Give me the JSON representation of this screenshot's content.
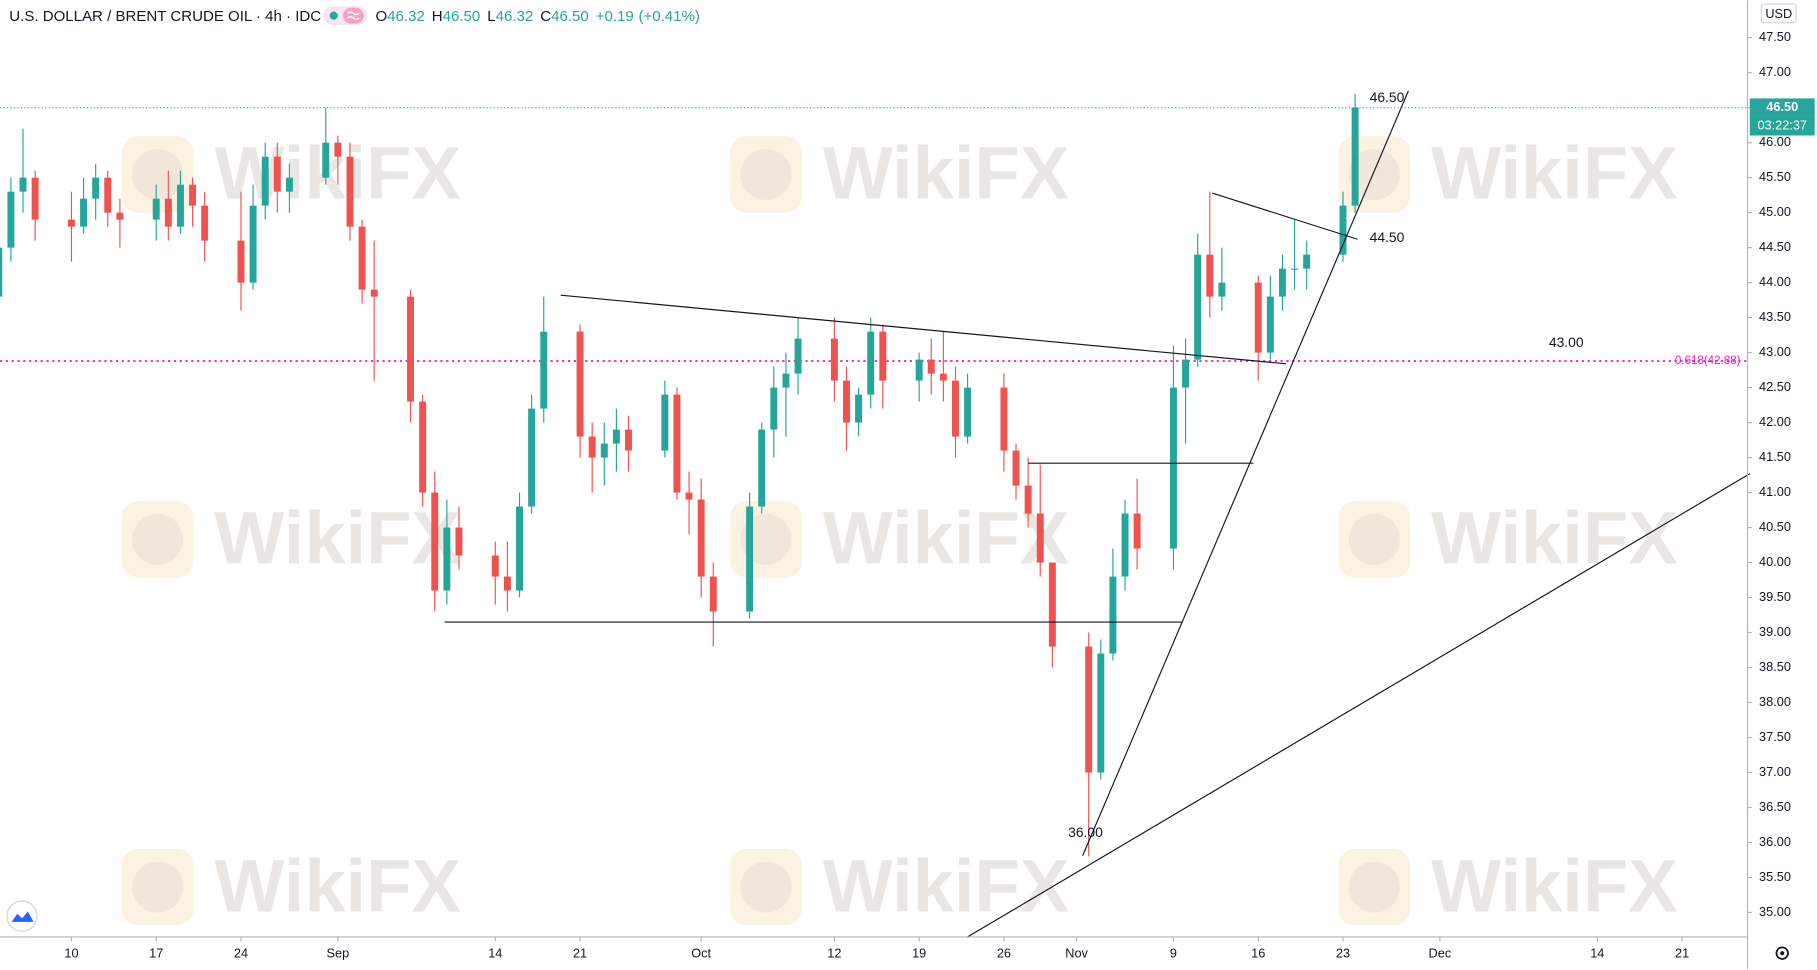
{
  "chart_data": {
    "type": "candlestick",
    "title": "U.S. DOLLAR / BRENT CRUDE OIL · 4h · IDC",
    "ohlc": [
      {
        "label": "O",
        "value": 46.32
      },
      {
        "label": "H",
        "value": 46.5
      },
      {
        "label": "L",
        "value": 46.32
      },
      {
        "label": "C",
        "value": 46.5
      }
    ],
    "ohlc_value_labels": [
      "46.32",
      "46.50",
      "46.32",
      "46.50"
    ],
    "change": "+0.19",
    "change_pct": "(+0.41%)",
    "currency": "USD",
    "countdown": "03:22:37",
    "watermark": "WikiFX",
    "up_color": "#26a69a",
    "down_color": "#ef5350",
    "grid": false,
    "x": [
      3,
      4,
      5,
      6,
      9,
      10,
      11,
      12,
      13,
      16,
      17,
      18,
      19,
      20,
      23,
      24,
      25,
      26,
      27,
      30,
      31,
      32,
      33,
      34,
      37,
      38,
      39,
      40,
      41,
      44,
      45,
      46,
      47,
      48,
      51,
      52,
      53,
      54,
      55,
      58,
      59,
      60,
      61,
      62,
      65,
      66,
      67,
      68,
      69,
      72,
      73,
      74,
      75,
      76,
      79,
      80,
      81,
      82,
      83,
      86,
      87,
      88,
      89,
      90,
      93,
      94,
      95,
      96,
      97,
      100,
      101,
      102,
      103,
      104,
      107,
      108,
      109,
      110,
      111,
      114,
      115
    ],
    "open": [
      43.8,
      44.5,
      45.3,
      45.5,
      44.9,
      44.8,
      45.2,
      45.5,
      45.0,
      44.9,
      45.2,
      44.8,
      45.4,
      45.1,
      44.6,
      44.0,
      45.1,
      45.8,
      45.3,
      45.5,
      46.0,
      45.8,
      44.8,
      43.9,
      43.8,
      42.3,
      41.0,
      39.6,
      40.5,
      40.1,
      39.8,
      39.6,
      40.8,
      42.2,
      43.3,
      41.8,
      41.5,
      41.7,
      41.9,
      41.6,
      42.4,
      41.0,
      40.9,
      39.8,
      39.3,
      40.8,
      41.9,
      42.5,
      42.7,
      43.2,
      42.6,
      42.0,
      42.4,
      43.3,
      42.6,
      42.9,
      42.7,
      42.6,
      41.8,
      42.5,
      41.6,
      41.1,
      40.7,
      40.0,
      38.8,
      37.0,
      38.7,
      39.8,
      40.7,
      40.2,
      42.5,
      42.9,
      44.4,
      43.8,
      44.0,
      43.0,
      43.8,
      44.2,
      44.2,
      44.4,
      45.1
    ],
    "high": [
      44.6,
      45.5,
      46.2,
      45.6,
      45.3,
      45.5,
      45.7,
      45.6,
      45.2,
      45.4,
      45.6,
      45.6,
      45.5,
      45.3,
      45.3,
      45.4,
      46.0,
      46.0,
      45.7,
      46.5,
      46.1,
      46.0,
      44.9,
      44.6,
      43.9,
      42.4,
      41.3,
      40.9,
      40.8,
      40.3,
      40.3,
      41.0,
      42.4,
      43.8,
      43.4,
      42.0,
      42.0,
      42.2,
      42.1,
      42.6,
      42.5,
      41.3,
      41.2,
      40.0,
      41.0,
      42.0,
      42.8,
      43.0,
      43.5,
      43.5,
      42.8,
      42.5,
      43.5,
      43.4,
      43.0,
      43.2,
      43.3,
      42.8,
      42.7,
      42.7,
      41.7,
      41.5,
      41.4,
      40.0,
      39.0,
      38.9,
      40.2,
      40.9,
      41.2,
      43.1,
      43.2,
      44.7,
      45.3,
      44.5,
      44.1,
      44.1,
      44.4,
      44.9,
      44.6,
      45.3,
      46.7
    ],
    "low": [
      43.2,
      44.3,
      45.0,
      44.6,
      44.3,
      44.7,
      44.9,
      44.8,
      44.5,
      44.6,
      44.6,
      44.7,
      44.8,
      44.3,
      43.6,
      43.9,
      44.9,
      45.0,
      45.0,
      45.4,
      45.4,
      44.6,
      43.7,
      42.6,
      42.0,
      40.8,
      39.3,
      39.4,
      39.9,
      39.4,
      39.3,
      39.5,
      40.7,
      42.0,
      41.5,
      41.0,
      41.1,
      41.3,
      41.3,
      41.5,
      40.9,
      40.4,
      39.5,
      38.8,
      39.2,
      40.7,
      41.5,
      41.8,
      42.4,
      42.3,
      41.6,
      41.8,
      42.2,
      42.2,
      42.3,
      42.4,
      42.3,
      41.5,
      41.7,
      41.3,
      40.9,
      40.5,
      39.8,
      38.5,
      35.8,
      36.9,
      38.6,
      39.6,
      39.9,
      39.9,
      41.7,
      42.8,
      43.5,
      43.6,
      42.6,
      42.9,
      43.6,
      43.9,
      43.9,
      44.3,
      45.0
    ],
    "close": [
      44.5,
      45.3,
      45.5,
      44.9,
      44.8,
      45.2,
      45.5,
      45.0,
      44.9,
      45.2,
      44.8,
      45.4,
      45.1,
      44.6,
      44.0,
      45.1,
      45.8,
      45.3,
      45.5,
      46.0,
      45.8,
      44.8,
      43.9,
      43.8,
      42.3,
      41.0,
      39.6,
      40.5,
      40.1,
      39.8,
      39.6,
      40.8,
      42.2,
      43.3,
      41.8,
      41.5,
      41.7,
      41.9,
      41.6,
      42.4,
      41.0,
      40.9,
      39.8,
      39.3,
      40.8,
      41.9,
      42.5,
      42.7,
      43.2,
      42.6,
      42.0,
      42.4,
      43.3,
      42.6,
      42.9,
      42.7,
      42.6,
      41.8,
      42.5,
      41.6,
      41.1,
      40.7,
      40.0,
      38.8,
      37.0,
      38.7,
      39.8,
      40.7,
      40.2,
      42.5,
      42.9,
      44.4,
      43.8,
      44.0,
      43.0,
      43.8,
      44.2,
      44.2,
      44.4,
      45.1,
      46.5
    ],
    "xlim": [
      3.1,
      147.4
    ],
    "ylim": [
      34.65,
      48.03
    ],
    "xticks": [
      {
        "value": 9,
        "label": "10"
      },
      {
        "value": 16,
        "label": "17"
      },
      {
        "value": 23,
        "label": "24"
      },
      {
        "value": 31,
        "label": "Sep"
      },
      {
        "value": 44,
        "label": "14"
      },
      {
        "value": 51,
        "label": "21"
      },
      {
        "value": 61,
        "label": "Oct"
      },
      {
        "value": 72,
        "label": "12"
      },
      {
        "value": 79,
        "label": "19"
      },
      {
        "value": 86,
        "label": "26"
      },
      {
        "value": 92,
        "label": "Nov"
      },
      {
        "value": 100,
        "label": "9"
      },
      {
        "value": 107,
        "label": "16"
      },
      {
        "value": 114,
        "label": "23"
      },
      {
        "value": 122,
        "label": "Dec"
      },
      {
        "value": 135,
        "label": "14"
      },
      {
        "value": 142,
        "label": "21"
      }
    ],
    "yticks": [
      {
        "value": 35,
        "label": "35.00"
      },
      {
        "value": 35.5,
        "label": "35.50"
      },
      {
        "value": 36,
        "label": "36.00"
      },
      {
        "value": 36.5,
        "label": "36.50"
      },
      {
        "value": 37,
        "label": "37.00"
      },
      {
        "value": 37.5,
        "label": "37.50"
      },
      {
        "value": 38,
        "label": "38.00"
      },
      {
        "value": 38.5,
        "label": "38.50"
      },
      {
        "value": 39,
        "label": "39.00"
      },
      {
        "value": 39.5,
        "label": "39.50"
      },
      {
        "value": 40,
        "label": "40.00"
      },
      {
        "value": 40.5,
        "label": "40.50"
      },
      {
        "value": 41,
        "label": "41.00"
      },
      {
        "value": 41.5,
        "label": "41.50"
      },
      {
        "value": 42,
        "label": "42.00"
      },
      {
        "value": 42.5,
        "label": "42.50"
      },
      {
        "value": 43,
        "label": "43.00"
      },
      {
        "value": 43.5,
        "label": "43.50"
      },
      {
        "value": 44,
        "label": "44.00"
      },
      {
        "value": 44.5,
        "label": "44.50"
      },
      {
        "value": 45,
        "label": "45.00"
      },
      {
        "value": 45.5,
        "label": "45.50"
      },
      {
        "value": 46,
        "label": "46.00"
      },
      {
        "value": 46.5,
        "label": "46.50"
      },
      {
        "value": 47,
        "label": "47.00"
      },
      {
        "value": 47.5,
        "label": "47.50"
      }
    ],
    "last_price": {
      "value": 46.5,
      "label": "46.50",
      "color": "#26a69a"
    },
    "fib_level": {
      "value": 42.88,
      "label": "0.618(42.88)",
      "color": "#e91ec6"
    },
    "trendlines": [
      {
        "x": [
          49.4,
          109.3
        ],
        "y": [
          43.82,
          42.84
        ]
      },
      {
        "x": [
          39.8,
          100.7
        ],
        "y": [
          39.15,
          39.15
        ]
      },
      {
        "x": [
          88.0,
          106.6
        ],
        "y": [
          41.42,
          41.42
        ]
      },
      {
        "x": [
          103.2,
          115.2
        ],
        "y": [
          45.28,
          44.62
        ]
      },
      {
        "x": [
          92.5,
          119.4
        ],
        "y": [
          35.81,
          46.74
        ]
      },
      {
        "x": [
          83.0,
          147.6
        ],
        "y": [
          34.65,
          41.27
        ]
      }
    ],
    "annotations": [
      {
        "x": 116.2,
        "value": 46.5,
        "label": "46.50"
      },
      {
        "x": 116.2,
        "value": 44.5,
        "label": "44.50"
      },
      {
        "x": 131.0,
        "value": 43.0,
        "label": "43.00"
      },
      {
        "x": 91.3,
        "value": 36.0,
        "label": "36.00"
      }
    ]
  }
}
